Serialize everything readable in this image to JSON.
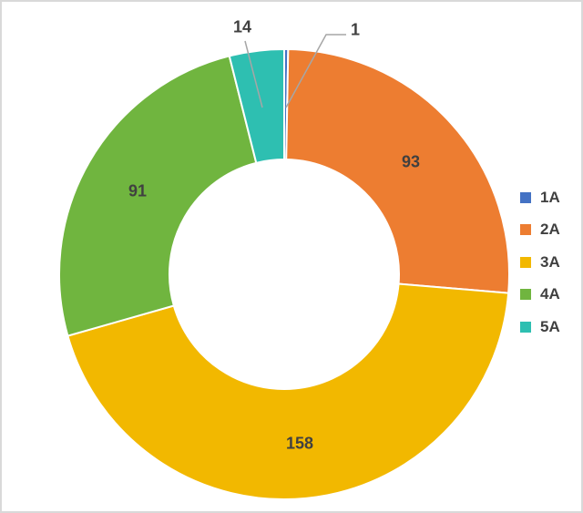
{
  "chart_data": {
    "type": "pie",
    "subtype": "donut",
    "title": "",
    "categories": [
      "1A",
      "2A",
      "3A",
      "4A",
      "5A"
    ],
    "values": [
      1,
      93,
      158,
      91,
      14
    ],
    "colors": [
      "#4472c4",
      "#ed7d31",
      "#f2b800",
      "#70b53f",
      "#2ebfb1"
    ],
    "legend_position": "right",
    "data_labels": [
      "1",
      "93",
      "158",
      "91",
      "14"
    ]
  },
  "legend": [
    {
      "label": "1A",
      "color": "#4472c4"
    },
    {
      "label": "2A",
      "color": "#ed7d31"
    },
    {
      "label": "3A",
      "color": "#f2b800"
    },
    {
      "label": "4A",
      "color": "#70b53f"
    },
    {
      "label": "5A",
      "color": "#2ebfb1"
    }
  ],
  "labels": {
    "v1": "1",
    "v2": "93",
    "v3": "158",
    "v4": "91",
    "v5": "14"
  }
}
